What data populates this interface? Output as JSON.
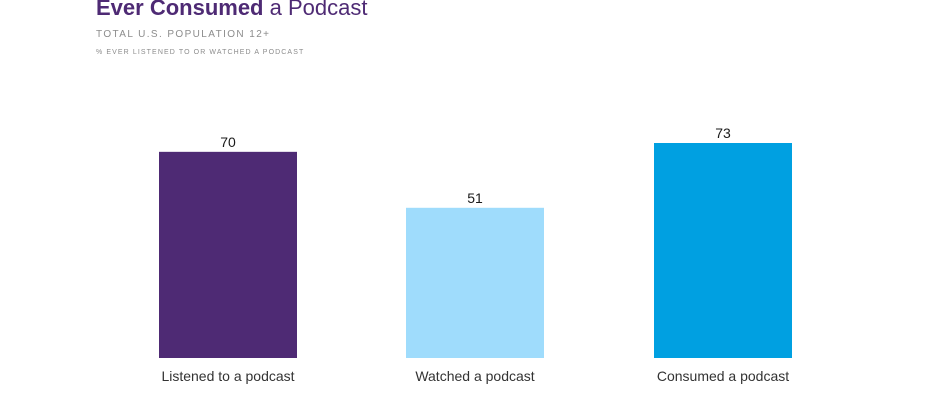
{
  "header": {
    "title_bold": "Ever Consumed",
    "title_rest": "a Podcast",
    "subtitle": "TOTAL U.S. POPULATION 12+",
    "note": "% EVER LISTENED TO OR WATCHED A PODCAST"
  },
  "chart_data": {
    "type": "bar",
    "categories": [
      "Listened to a podcast",
      "Watched a podcast",
      "Consumed a podcast"
    ],
    "values": [
      70,
      51,
      73
    ],
    "colors": [
      "#4e2a74",
      "#9fdcfc",
      "#00a0e1"
    ],
    "ylim": [
      0,
      73
    ],
    "grid": false,
    "legend": "none"
  }
}
